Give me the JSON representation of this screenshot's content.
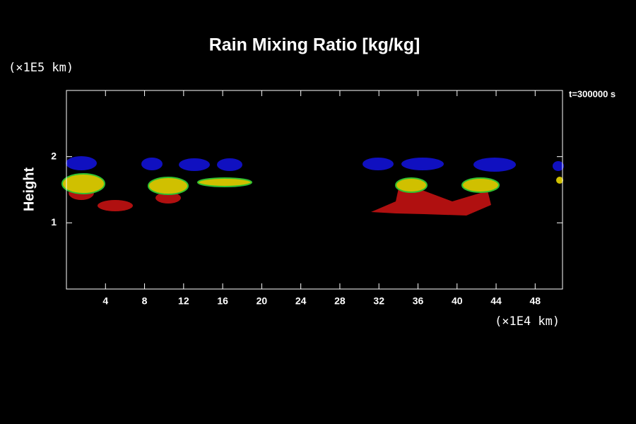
{
  "chart_data": {
    "type": "shaded",
    "title": "Rain Mixing Ratio [kg/kg]",
    "y_label": "Height",
    "y_unit": "(×1E5 km)",
    "x_unit": "(×1E4 km)",
    "annotation": "t=300000 s",
    "xlim": [
      0,
      50.8
    ],
    "xticks": [
      4,
      8,
      12,
      16,
      20,
      24,
      28,
      32,
      36,
      40,
      44,
      48
    ],
    "ylim": [
      0,
      3
    ],
    "yticks": [
      1,
      2
    ]
  }
}
